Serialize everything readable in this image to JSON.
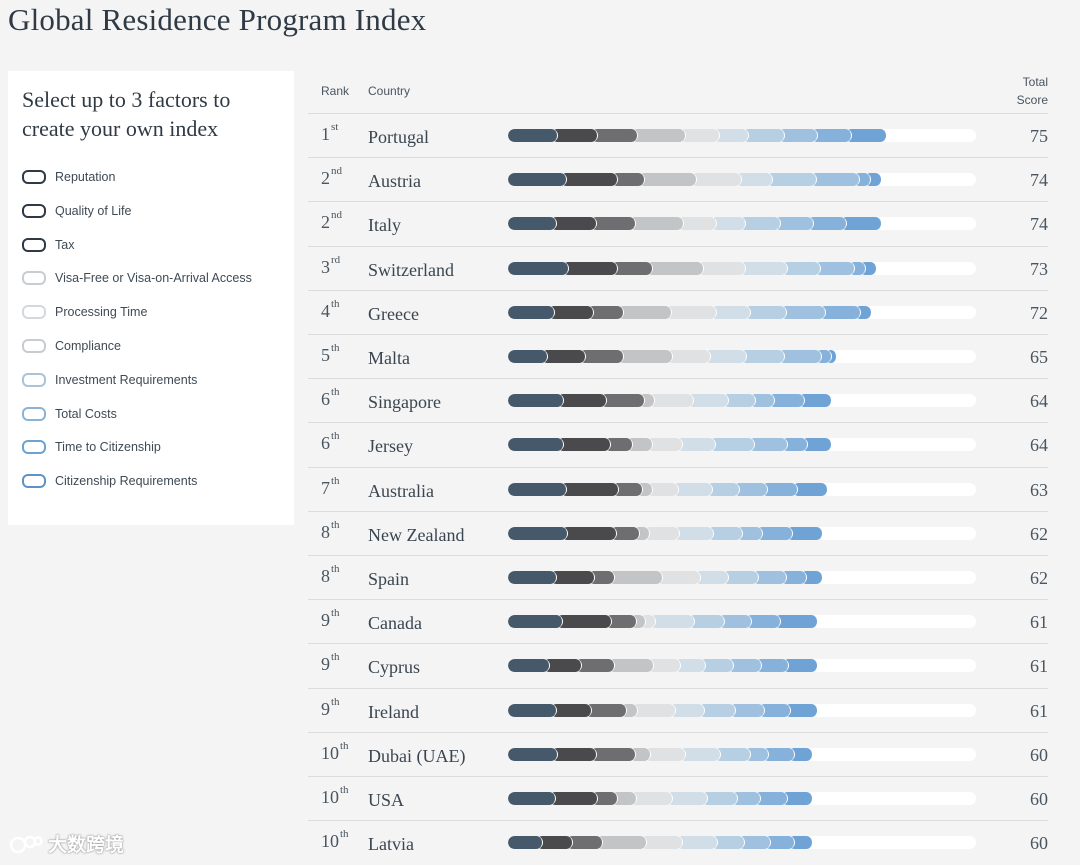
{
  "page": {
    "title": "Global Residence Program Index"
  },
  "panel": {
    "heading": "Select up to 3 factors to create your own index",
    "factors": [
      {
        "label": "Reputation",
        "color": "#2f3a45"
      },
      {
        "label": "Quality of Life",
        "color": "#2f3a45"
      },
      {
        "label": "Tax",
        "color": "#2f3a45"
      },
      {
        "label": "Visa-Free or Visa-on-Arrival Access",
        "color": "#c9ccd0"
      },
      {
        "label": "Processing Time",
        "color": "#d5d8db"
      },
      {
        "label": "Compliance",
        "color": "#c8ccd0"
      },
      {
        "label": "Investment Requirements",
        "color": "#a9c3db"
      },
      {
        "label": "Total Costs",
        "color": "#8ab3d7"
      },
      {
        "label": "Time to Citizenship",
        "color": "#6ea2d2"
      },
      {
        "label": "Citizenship Requirements",
        "color": "#5d94c8"
      }
    ]
  },
  "table": {
    "headers": {
      "rank": "Rank",
      "country": "Country",
      "score_line1": "Total",
      "score_line2": "Score"
    },
    "segment_colors": [
      "#46596b",
      "#4a4a4c",
      "#6e6e70",
      "#c2c4c6",
      "#dfe1e2",
      "#d1dde7",
      "#b6cfe3",
      "#9fc0de",
      "#86b1da",
      "#6fa3d6"
    ],
    "rows": [
      {
        "rank": "1",
        "suffix": "st",
        "country": "Portugal",
        "score": "75",
        "segments": [
          9.2,
          8.6,
          8.6,
          10.4,
          7.2,
          6.4,
          7.6,
          7.2,
          7.2,
          7.6
        ]
      },
      {
        "rank": "2",
        "suffix": "nd",
        "country": "Austria",
        "score": "74",
        "segments": [
          10.4,
          10.4,
          5.4,
          10.4,
          9.2,
          6.2,
          8.8,
          8.8,
          2.2,
          2.2
        ]
      },
      {
        "rank": "2",
        "suffix": "nd",
        "country": "Italy",
        "score": "74",
        "segments": [
          9.2,
          8.6,
          8.6,
          10.4,
          7.2,
          6.4,
          7.6,
          7.2,
          7.2,
          7.6
        ]
      },
      {
        "rank": "3",
        "suffix": "rd",
        "country": "Switzerland",
        "score": "73",
        "segments": [
          11.2,
          10.4,
          7.2,
          10.8,
          8.8,
          8.8,
          6.8,
          7.2,
          2.2,
          2.4
        ]
      },
      {
        "rank": "4",
        "suffix": "th",
        "country": "Greece",
        "score": "72",
        "segments": [
          8.4,
          8.2,
          6.2,
          10.2,
          9.4,
          7.2,
          7.6,
          8.2,
          7.2,
          2.4
        ]
      },
      {
        "rank": "5",
        "suffix": "th",
        "country": "Malta",
        "score": "65",
        "segments": [
          7.0,
          8.2,
          8.2,
          10.4,
          8.2,
          7.6,
          8.2,
          7.8,
          2.2,
          1.2
        ]
      },
      {
        "rank": "6",
        "suffix": "th",
        "country": "Singapore",
        "score": "64",
        "segments": [
          10.4,
          9.2,
          8.2,
          2.2,
          8.2,
          7.6,
          5.6,
          4.2,
          6.4,
          5.8
        ]
      },
      {
        "rank": "6",
        "suffix": "th",
        "country": "Jersey",
        "score": "64",
        "segments": [
          10.4,
          10.2,
          4.6,
          4.2,
          6.4,
          7.2,
          8.2,
          7.2,
          4.2,
          5.2
        ]
      },
      {
        "rank": "7",
        "suffix": "th",
        "country": "Australia",
        "score": "63",
        "segments": [
          10.8,
          10.8,
          4.8,
          2.2,
          5.2,
          7.2,
          5.6,
          5.6,
          6.4,
          6.0
        ]
      },
      {
        "rank": "8",
        "suffix": "th",
        "country": "New Zealand",
        "score": "62",
        "segments": [
          11.2,
          10.4,
          4.8,
          2.2,
          6.4,
          7.2,
          6.2,
          4.2,
          6.4,
          6.2
        ]
      },
      {
        "rank": "8",
        "suffix": "th",
        "country": "Spain",
        "score": "62",
        "segments": [
          9.2,
          8.2,
          4.2,
          10.4,
          8.2,
          6.2,
          6.4,
          6.2,
          4.2,
          3.4
        ]
      },
      {
        "rank": "9",
        "suffix": "th",
        "country": "Canada",
        "score": "61",
        "segments": [
          10.2,
          10.6,
          5.2,
          2.0,
          2.2,
          8.2,
          6.4,
          5.8,
          6.2,
          7.8
        ]
      },
      {
        "rank": "9",
        "suffix": "th",
        "country": "Cyprus",
        "score": "61",
        "segments": [
          9.2,
          8.6,
          8.6,
          10.4,
          7.2,
          6.4,
          7.6,
          7.2,
          7.2,
          7.6
        ]
      },
      {
        "rank": "9",
        "suffix": "th",
        "country": "Ireland",
        "score": "61",
        "segments": [
          9.2,
          7.6,
          7.8,
          2.4,
          8.2,
          6.4,
          6.8,
          6.2,
          5.8,
          5.8
        ]
      },
      {
        "rank": "10",
        "suffix": "th",
        "country": "Dubai (UAE)",
        "score": "60",
        "segments": [
          10.0,
          9.2,
          9.2,
          3.4,
          8.2,
          8.2,
          7.2,
          4.2,
          6.0,
          4.2
        ]
      },
      {
        "rank": "10",
        "suffix": "th",
        "country": "USA",
        "score": "60",
        "segments": [
          9.4,
          9.6,
          4.6,
          4.2,
          8.2,
          8.2,
          6.8,
          5.2,
          6.2,
          5.6
        ]
      },
      {
        "rank": "10",
        "suffix": "th",
        "country": "Latvia",
        "score": "60",
        "segments": [
          6.6,
          7.2,
          7.2,
          10.4,
          8.6,
          8.2,
          6.4,
          6.2,
          5.8,
          4.2
        ]
      }
    ]
  },
  "watermark": {
    "text": "大数跨境"
  }
}
